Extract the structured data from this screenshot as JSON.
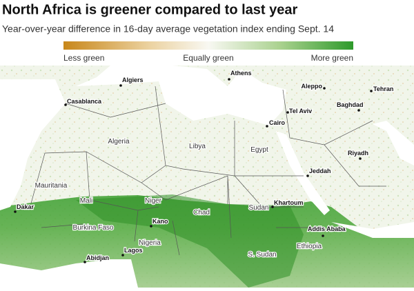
{
  "header": {
    "title": "North Africa is greener compared to last year",
    "subtitle": "Year-over-year difference in 16-day average vegetation index ending Sept. 14"
  },
  "legend": {
    "labels": [
      "Less green",
      "Equally green",
      "More green"
    ]
  },
  "map": {
    "countries": [
      "Algeria",
      "Libya",
      "Egypt",
      "Mauritania",
      "Mali",
      "Niger",
      "Chad",
      "Sudan",
      "Burkina Faso",
      "Nigeria",
      "S. Sudan",
      "Ethiopia"
    ],
    "cities": [
      "Algiers",
      "Athens",
      "Aleppo",
      "Tehran",
      "Casablanca",
      "Baghdad",
      "Tel Aviv",
      "Cairo",
      "Riyadh",
      "Jeddah",
      "Dakar",
      "Khartoum",
      "Kano",
      "Addis Ababa",
      "Abidjan",
      "Lagos"
    ]
  }
}
